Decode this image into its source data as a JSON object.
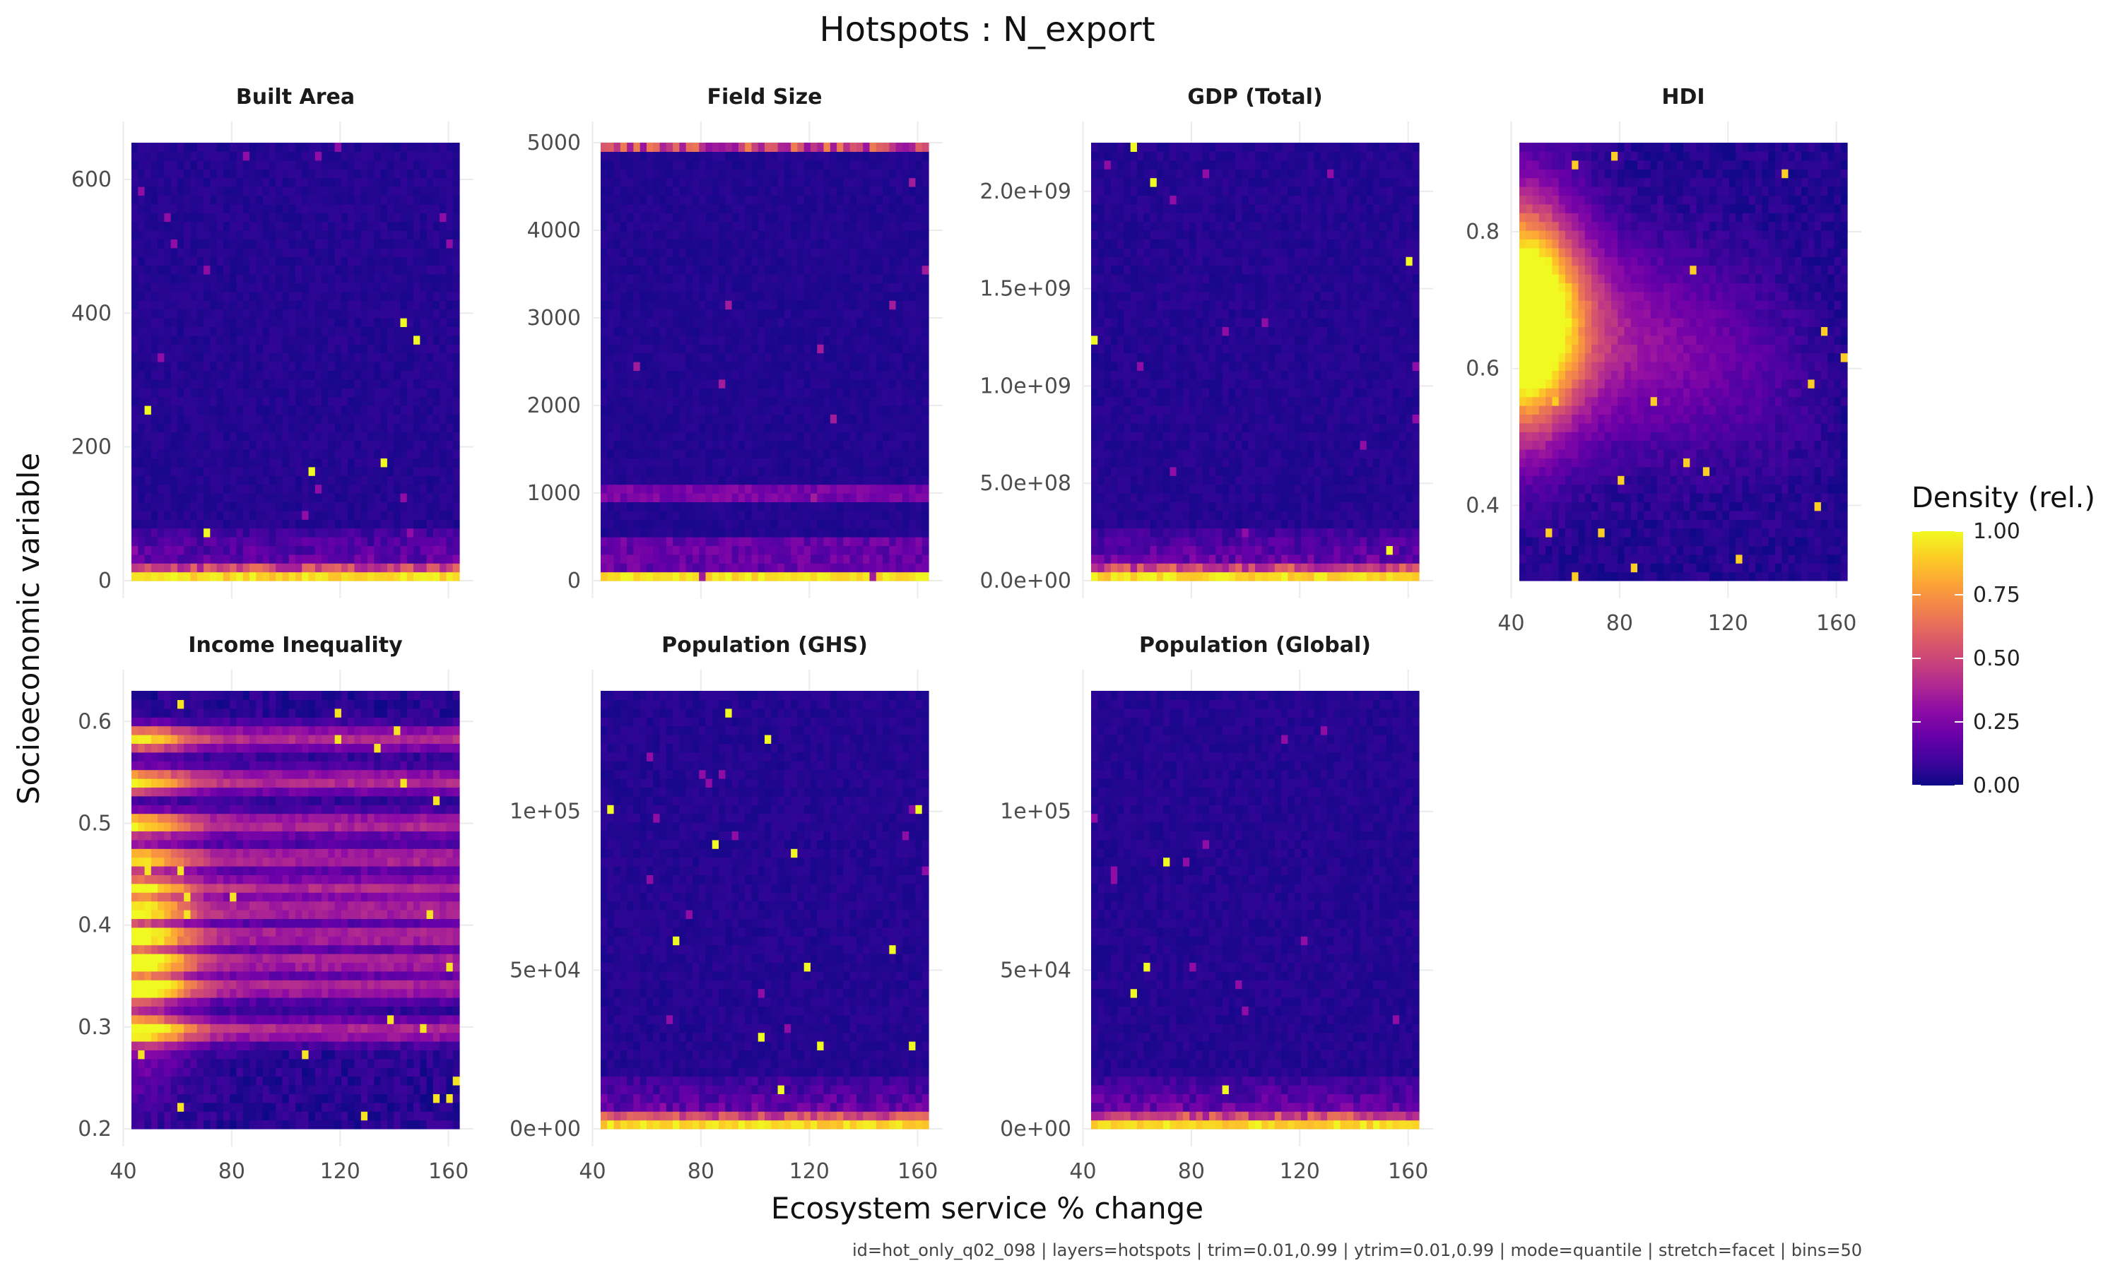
{
  "chart_data": {
    "type": "heatmap",
    "title": "Hotspots : N_export",
    "xlabel": "Ecosystem service % change",
    "ylabel": "Socioeconomic variable",
    "caption": "id=hot_only_q02_098 | layers=hotspots | trim=0.01,0.99 | ytrim=0.01,0.99 | mode=quantile | stretch=facet | bins=50",
    "bins": 50,
    "xlim": [
      43,
      164
    ],
    "x_ticks": [
      40,
      80,
      120,
      160
    ],
    "legend": {
      "title": "Density (rel.)",
      "ticks": [
        "1.00",
        "0.75",
        "0.50",
        "0.25",
        "0.00"
      ],
      "tick_values": [
        1.0,
        0.75,
        0.5,
        0.25,
        0.0
      ],
      "position": "right",
      "colors": [
        "#0d0887",
        "#41049d",
        "#6a00a8",
        "#8f0da4",
        "#b12a90",
        "#cc4778",
        "#e16462",
        "#f2844b",
        "#fca636",
        "#fcce25",
        "#f0f921"
      ]
    },
    "panels": [
      {
        "name": "Built Area",
        "ylim": [
          0,
          655
        ],
        "y_ticks": [
          0,
          200,
          400,
          600
        ],
        "y_tick_labels": [
          "0",
          "200",
          "400",
          "600"
        ],
        "pattern": "bottom"
      },
      {
        "name": "Field Size",
        "ylim": [
          0,
          5000
        ],
        "y_ticks": [
          0,
          1000,
          2000,
          3000,
          4000,
          5000
        ],
        "y_tick_labels": [
          "0",
          "1000",
          "2000",
          "3000",
          "4000",
          "5000"
        ],
        "pattern": "fieldsize"
      },
      {
        "name": "GDP (Total)",
        "ylim": [
          0,
          2250000000.0
        ],
        "y_ticks": [
          0,
          500000000.0,
          1000000000.0,
          1500000000.0,
          2000000000.0
        ],
        "y_tick_labels": [
          "0.0e+00",
          "5.0e+08",
          "1.0e+09",
          "1.5e+09",
          "2.0e+09"
        ],
        "pattern": "bottom"
      },
      {
        "name": "HDI",
        "ylim": [
          0.29,
          0.93
        ],
        "y_ticks": [
          0.4,
          0.6,
          0.8
        ],
        "y_tick_labels": [
          "0.4",
          "0.6",
          "0.8"
        ],
        "pattern": "hdi"
      },
      {
        "name": "Income Inequality",
        "ylim": [
          0.2,
          0.63
        ],
        "y_ticks": [
          0.2,
          0.3,
          0.4,
          0.5,
          0.6
        ],
        "y_tick_labels": [
          "0.2",
          "0.3",
          "0.4",
          "0.5",
          "0.6"
        ],
        "pattern": "income"
      },
      {
        "name": "Population (GHS)",
        "ylim": [
          0,
          138000
        ],
        "y_ticks": [
          0,
          50000,
          100000
        ],
        "y_tick_labels": [
          "0e+00",
          "5e+04",
          "1e+05"
        ],
        "pattern": "bottom"
      },
      {
        "name": "Population (Global)",
        "ylim": [
          0,
          138000
        ],
        "y_ticks": [
          0,
          50000,
          100000
        ],
        "y_tick_labels": [
          "0e+00",
          "5e+04",
          "1e+05"
        ],
        "pattern": "bottom"
      }
    ]
  }
}
